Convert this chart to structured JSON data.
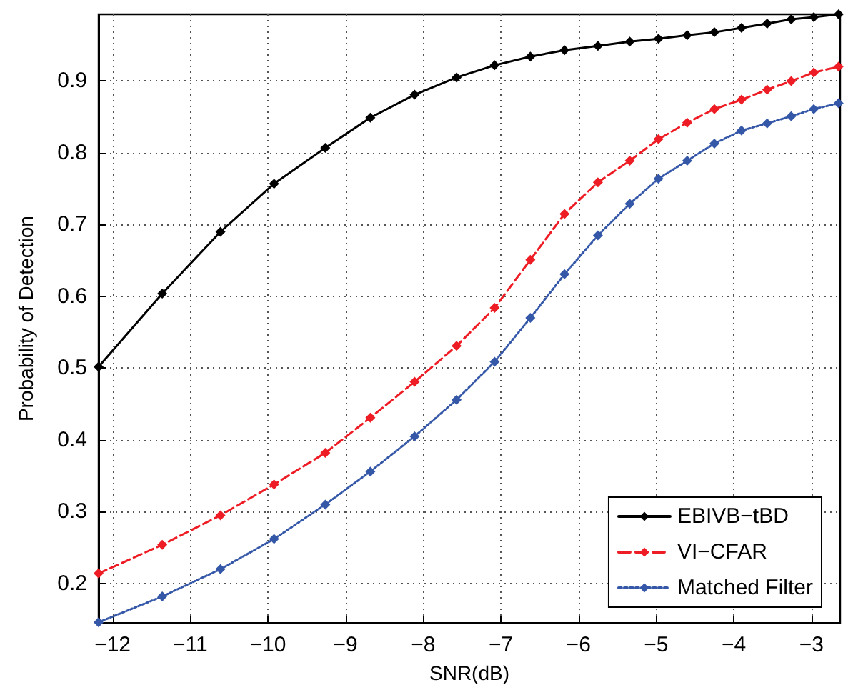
{
  "chart_data": {
    "type": "line",
    "xlabel": "SNR(dB)",
    "ylabel": "Probability of Detection",
    "x": [
      -12.18,
      -11.36,
      -10.61,
      -9.92,
      -9.26,
      -8.68,
      -8.11,
      -7.57,
      -7.08,
      -6.62,
      -6.18,
      -5.75,
      -5.34,
      -4.97,
      -4.6,
      -4.25,
      -3.9,
      -3.57,
      -3.26,
      -2.97,
      -2.65
    ],
    "series": [
      {
        "name": "EBIVB−tBD",
        "color": "#000000",
        "line_style": "solid",
        "values": [
          0.502,
          0.604,
          0.69,
          0.757,
          0.807,
          0.849,
          0.881,
          0.905,
          0.922,
          0.934,
          0.943,
          0.949,
          0.955,
          0.959,
          0.964,
          0.968,
          0.974,
          0.98,
          0.986,
          0.989,
          0.993
        ]
      },
      {
        "name": "VI−CFAR",
        "color": "#ee1c24",
        "line_style": "dashed",
        "values": [
          0.214,
          0.254,
          0.295,
          0.338,
          0.382,
          0.431,
          0.481,
          0.531,
          0.584,
          0.651,
          0.715,
          0.759,
          0.789,
          0.819,
          0.842,
          0.861,
          0.874,
          0.888,
          0.9,
          0.912,
          0.92
        ]
      },
      {
        "name": "Matched Filter",
        "color": "#3457a8",
        "line_style": "dotted",
        "values": [
          0.146,
          0.182,
          0.22,
          0.262,
          0.31,
          0.356,
          0.405,
          0.456,
          0.509,
          0.57,
          0.631,
          0.685,
          0.729,
          0.764,
          0.789,
          0.813,
          0.831,
          0.841,
          0.851,
          0.861,
          0.869
        ]
      }
    ],
    "xlim": [
      -12.18,
      -2.63
    ],
    "ylim": [
      0.145,
      0.993
    ],
    "xticks": [
      -12,
      -11,
      -10,
      -9,
      -8,
      -7,
      -6,
      -5,
      -4,
      -3
    ],
    "yticks": [
      0.2,
      0.3,
      0.4,
      0.5,
      0.6,
      0.7,
      0.8,
      0.9
    ],
    "grid": true,
    "legend": "bottom right",
    "marker": "diamond"
  }
}
